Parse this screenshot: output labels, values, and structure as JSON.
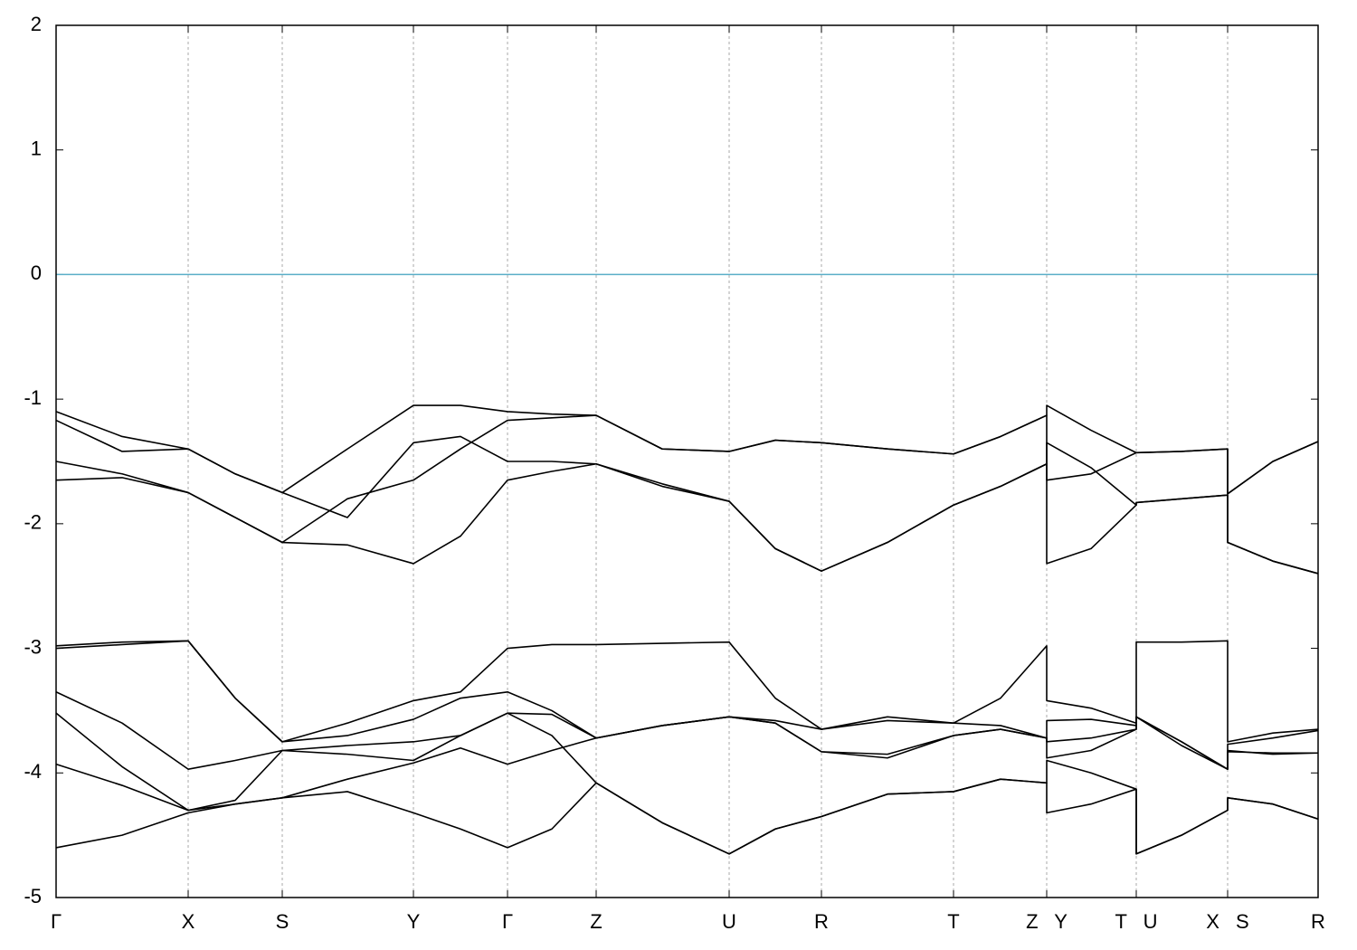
{
  "chart_data": {
    "type": "line",
    "x": [
      0,
      73,
      146,
      198,
      250,
      322,
      395,
      447,
      499,
      548,
      597,
      670,
      744,
      795,
      846,
      919,
      992,
      1044,
      1095,
      1095,
      1144,
      1194,
      1194,
      1244,
      1295,
      1295,
      1345,
      1395
    ],
    "xlim": [
      0,
      1395
    ],
    "xticks": [
      {
        "value": 0,
        "label": "Γ"
      },
      {
        "value": 146,
        "label": "X"
      },
      {
        "value": 250,
        "label": "S"
      },
      {
        "value": 395,
        "label": "Y"
      },
      {
        "value": 499,
        "label": "Γ"
      },
      {
        "value": 597,
        "label": "Z"
      },
      {
        "value": 744,
        "label": "U"
      },
      {
        "value": 846,
        "label": "R"
      },
      {
        "value": 992,
        "label": "T"
      },
      {
        "value": 1095,
        "label": "Z Y"
      },
      {
        "value": 1194,
        "label": "T U"
      },
      {
        "value": 1295,
        "label": "X S"
      },
      {
        "value": 1395,
        "label": "R"
      }
    ],
    "ylim": [
      -5,
      2
    ],
    "yticks": [
      -5,
      -4,
      -3,
      -2,
      -1,
      0,
      1,
      2
    ],
    "grid": "x",
    "hline": {
      "value": 0,
      "color": "#5aaec8"
    },
    "series": [
      {
        "color": "#000000",
        "values": [
          -1.1,
          -1.3,
          -1.4,
          -1.6,
          -1.75,
          -1.4,
          -1.05,
          -1.05,
          -1.1,
          -1.12,
          -1.13,
          -1.4,
          -1.42,
          -1.33,
          -1.35,
          -1.4,
          -1.44,
          -1.3,
          -1.13,
          -1.05,
          -1.25,
          -1.43,
          -1.43,
          -1.42,
          -1.4,
          -1.76,
          -1.5,
          -1.34
        ]
      },
      {
        "color": "#000000",
        "values": [
          -1.17,
          -1.42,
          -1.4,
          -1.6,
          -1.75,
          -1.95,
          -1.35,
          -1.3,
          -1.5,
          -1.5,
          -1.52,
          -1.7,
          -1.82,
          -2.2,
          -2.38,
          -2.15,
          -1.85,
          -1.7,
          -1.52,
          -1.35,
          -1.55,
          -1.85,
          -1.83,
          -1.8,
          -1.77,
          -2.15,
          -2.3,
          -2.4
        ]
      },
      {
        "color": "#000000",
        "values": [
          -1.5,
          -1.6,
          -1.75,
          -1.95,
          -2.15,
          -1.8,
          -1.65,
          -1.4,
          -1.17,
          -1.15,
          -1.13,
          -1.4,
          -1.42,
          -1.33,
          -1.35,
          -1.4,
          -1.44,
          -1.3,
          -1.13,
          -1.65,
          -1.6,
          -1.43,
          -1.43,
          -1.42,
          -1.4,
          -1.76,
          -1.5,
          -1.34
        ]
      },
      {
        "color": "#000000",
        "values": [
          -1.65,
          -1.63,
          -1.75,
          -1.95,
          -2.15,
          -2.17,
          -2.32,
          -2.1,
          -1.65,
          -1.58,
          -1.52,
          -1.68,
          -1.82,
          -2.2,
          -2.38,
          -2.15,
          -1.85,
          -1.7,
          -1.52,
          -2.32,
          -2.2,
          -1.85,
          -1.83,
          -1.8,
          -1.77,
          -2.15,
          -2.3,
          -2.4
        ]
      },
      {
        "color": "#000000",
        "values": [
          -2.98,
          -2.95,
          -2.94,
          -3.4,
          -3.75,
          -3.6,
          -3.42,
          -3.35,
          -3.0,
          -2.97,
          -2.97,
          -2.96,
          -2.95,
          -3.4,
          -3.65,
          -3.55,
          -3.6,
          -3.4,
          -2.98,
          -3.42,
          -3.48,
          -3.6,
          -2.95,
          -2.95,
          -2.94,
          -3.75,
          -3.68,
          -3.65
        ]
      },
      {
        "color": "#000000",
        "values": [
          -3.0,
          -2.97,
          -2.94,
          -3.4,
          -3.75,
          -3.7,
          -3.57,
          -3.4,
          -3.35,
          -3.5,
          -3.72,
          -3.62,
          -3.55,
          -3.6,
          -3.83,
          -3.88,
          -3.7,
          -3.65,
          -3.72,
          -3.58,
          -3.57,
          -3.62,
          -3.55,
          -3.75,
          -3.97,
          -3.77,
          -3.72,
          -3.66
        ]
      },
      {
        "color": "#000000",
        "values": [
          -3.35,
          -3.6,
          -3.97,
          -3.9,
          -3.82,
          -3.78,
          -3.75,
          -3.7,
          -3.52,
          -3.53,
          -3.72,
          -3.62,
          -3.55,
          -3.58,
          -3.65,
          -3.58,
          -3.6,
          -3.62,
          -3.72,
          -3.75,
          -3.72,
          -3.65,
          -3.55,
          -3.78,
          -3.97,
          -3.82,
          -3.85,
          -3.84
        ]
      },
      {
        "color": "#000000",
        "values": [
          -3.52,
          -3.95,
          -4.3,
          -4.22,
          -3.82,
          -3.85,
          -3.9,
          -3.7,
          -3.52,
          -3.7,
          -4.08,
          -4.4,
          -4.65,
          -4.45,
          -4.35,
          -4.17,
          -4.15,
          -4.05,
          -4.08,
          -3.9,
          -4.0,
          -4.13,
          -4.65,
          -4.5,
          -4.3,
          -4.2,
          -4.25,
          -4.37
        ]
      },
      {
        "color": "#000000",
        "values": [
          -3.93,
          -4.1,
          -4.3,
          -4.25,
          -4.2,
          -4.05,
          -3.92,
          -3.8,
          -3.93,
          -3.82,
          -3.72,
          -3.62,
          -3.55,
          -3.6,
          -3.83,
          -3.85,
          -3.7,
          -3.65,
          -3.72,
          -3.88,
          -3.82,
          -3.65,
          -3.55,
          -3.75,
          -3.97,
          -3.83,
          -3.84,
          -3.84
        ]
      },
      {
        "color": "#000000",
        "values": [
          -4.6,
          -4.5,
          -4.32,
          -4.25,
          -4.2,
          -4.15,
          -4.32,
          -4.45,
          -4.6,
          -4.45,
          -4.08,
          -4.4,
          -4.65,
          -4.45,
          -4.35,
          -4.17,
          -4.15,
          -4.05,
          -4.08,
          -4.32,
          -4.25,
          -4.13,
          -4.65,
          -4.5,
          -4.3,
          -4.2,
          -4.25,
          -4.37
        ]
      }
    ]
  }
}
